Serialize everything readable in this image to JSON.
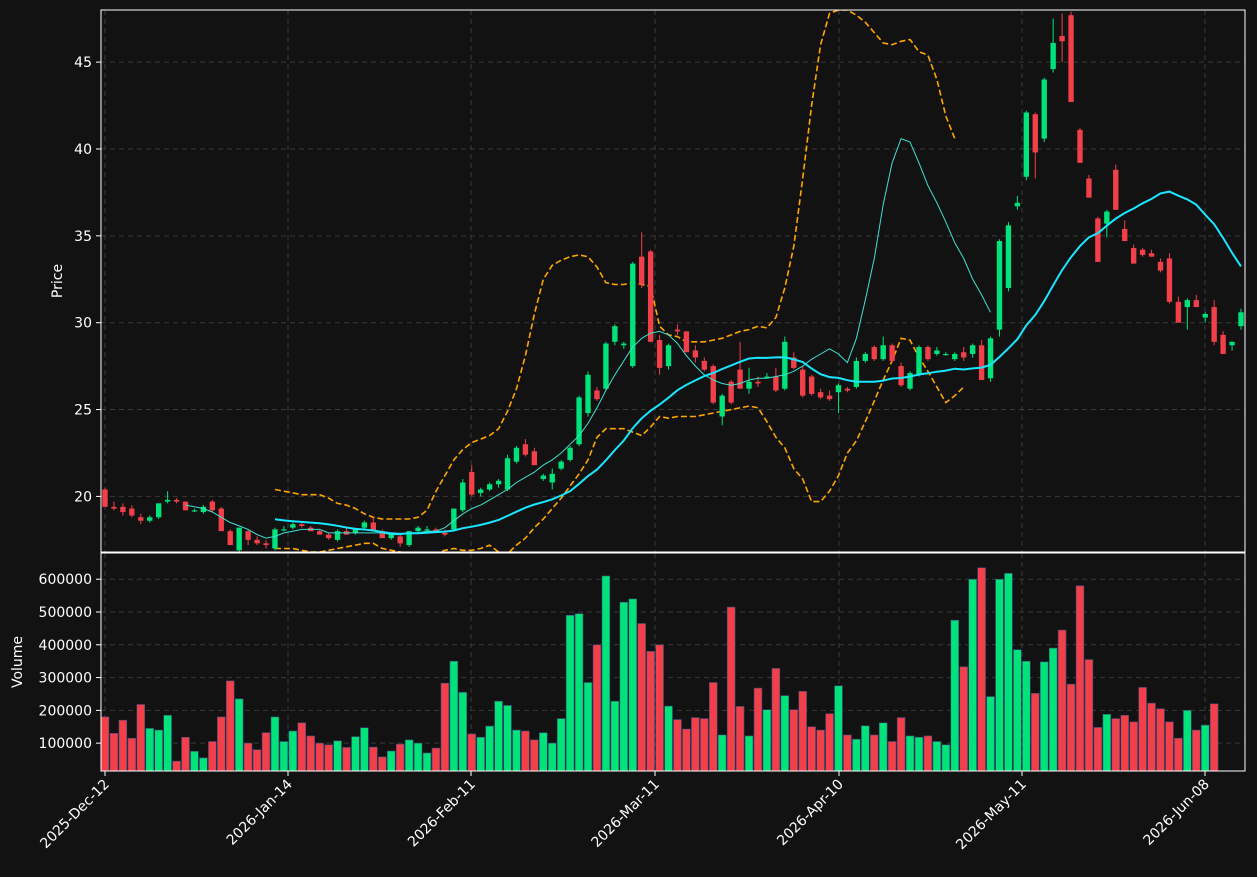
{
  "chart_data": [
    {
      "type": "candlestick",
      "panel": "price",
      "ylabel": "Price",
      "ylim": [
        16.8,
        48.0
      ],
      "yticks": [
        20,
        25,
        30,
        35,
        40,
        45
      ],
      "grid": true,
      "overlays": [
        {
          "kind": "moving_average",
          "style": "thin cyan line"
        },
        {
          "kind": "moving_average",
          "style": "thick cyan line"
        },
        {
          "kind": "bollinger_bands",
          "style": "orange dashed lines"
        }
      ],
      "colors": {
        "up": "#00e37a",
        "down": "#f2404a",
        "ma_thin": "#40e0d0",
        "ma_thick": "#19e6ff",
        "bands": "#ffa500",
        "background": "#121212",
        "grid": "#3a3a3a"
      },
      "ohlc": [
        [
          20.4,
          20.5,
          19.4,
          19.4
        ],
        [
          19.4,
          19.7,
          19.2,
          19.3
        ],
        [
          19.4,
          19.6,
          18.9,
          19.1
        ],
        [
          19.3,
          19.5,
          18.8,
          18.9
        ],
        [
          18.8,
          19.0,
          18.4,
          18.6
        ],
        [
          18.6,
          18.9,
          18.5,
          18.8
        ],
        [
          18.8,
          19.6,
          18.7,
          19.6
        ],
        [
          19.7,
          20.3,
          19.6,
          19.8
        ],
        [
          19.8,
          19.9,
          19.6,
          19.7
        ],
        [
          19.7,
          19.7,
          19.2,
          19.2
        ],
        [
          19.2,
          19.3,
          19.1,
          19.2
        ],
        [
          19.1,
          19.5,
          19.0,
          19.4
        ],
        [
          19.7,
          19.8,
          19.1,
          19.2
        ],
        [
          19.3,
          19.4,
          18.0,
          18.0
        ],
        [
          18.0,
          18.1,
          17.2,
          17.2
        ],
        [
          16.9,
          18.2,
          16.8,
          18.2
        ],
        [
          18.0,
          18.1,
          17.2,
          17.5
        ],
        [
          17.5,
          17.7,
          17.2,
          17.3
        ],
        [
          17.3,
          17.5,
          17.0,
          17.2
        ],
        [
          17.0,
          18.2,
          16.9,
          18.1
        ],
        [
          18.1,
          18.3,
          18.0,
          18.1
        ],
        [
          18.2,
          18.5,
          18.1,
          18.4
        ],
        [
          18.4,
          18.5,
          18.2,
          18.3
        ],
        [
          18.2,
          18.3,
          18.0,
          18.0
        ],
        [
          18.0,
          18.1,
          17.8,
          17.8
        ],
        [
          17.8,
          17.9,
          17.5,
          17.6
        ],
        [
          17.5,
          18.1,
          17.4,
          18.0
        ],
        [
          18.0,
          18.2,
          17.8,
          17.8
        ],
        [
          17.9,
          18.2,
          17.8,
          18.1
        ],
        [
          18.2,
          18.6,
          18.1,
          18.5
        ],
        [
          18.5,
          18.8,
          18.0,
          18.0
        ],
        [
          18.0,
          18.1,
          17.6,
          17.6
        ],
        [
          17.6,
          17.9,
          17.5,
          17.8
        ],
        [
          17.7,
          17.9,
          17.1,
          17.3
        ],
        [
          17.2,
          18.0,
          17.1,
          18.0
        ],
        [
          18.0,
          18.3,
          17.9,
          18.2
        ],
        [
          18.1,
          18.3,
          18.0,
          18.1
        ],
        [
          18.1,
          18.2,
          17.9,
          18.0
        ],
        [
          17.9,
          18.1,
          17.7,
          17.8
        ],
        [
          18.1,
          19.3,
          18.0,
          19.3
        ],
        [
          19.2,
          21.0,
          19.1,
          20.8
        ],
        [
          21.4,
          21.8,
          20.0,
          20.1
        ],
        [
          20.2,
          20.5,
          20.0,
          20.4
        ],
        [
          20.4,
          20.8,
          20.3,
          20.7
        ],
        [
          20.7,
          21.0,
          20.5,
          20.9
        ],
        [
          20.4,
          22.4,
          20.3,
          22.2
        ],
        [
          22.0,
          22.9,
          21.9,
          22.8
        ],
        [
          23.0,
          23.3,
          22.3,
          22.4
        ],
        [
          22.6,
          22.8,
          21.8,
          21.8
        ],
        [
          21.0,
          21.3,
          20.9,
          21.2
        ],
        [
          20.8,
          21.6,
          20.4,
          21.3
        ],
        [
          21.6,
          22.1,
          21.5,
          22.0
        ],
        [
          22.1,
          22.9,
          22.0,
          22.8
        ],
        [
          23.0,
          25.8,
          22.9,
          25.7
        ],
        [
          24.8,
          27.2,
          24.6,
          27.0
        ],
        [
          26.1,
          26.3,
          25.5,
          25.6
        ],
        [
          26.2,
          28.9,
          26.1,
          28.8
        ],
        [
          28.9,
          29.9,
          28.7,
          29.8
        ],
        [
          28.7,
          28.9,
          28.5,
          28.8
        ],
        [
          27.5,
          33.5,
          27.4,
          33.4
        ],
        [
          33.8,
          35.2,
          32.0,
          32.2
        ],
        [
          34.1,
          34.2,
          28.9,
          28.9
        ],
        [
          29.0,
          29.3,
          27.0,
          27.4
        ],
        [
          27.5,
          28.8,
          27.3,
          28.7
        ],
        [
          29.6,
          29.9,
          29.3,
          29.5
        ],
        [
          29.5,
          29.5,
          28.4,
          28.3
        ],
        [
          28.4,
          28.7,
          27.7,
          28.0
        ],
        [
          27.8,
          28.0,
          27.2,
          27.3
        ],
        [
          27.5,
          27.6,
          25.3,
          25.4
        ],
        [
          24.6,
          25.9,
          24.1,
          25.8
        ],
        [
          26.6,
          26.7,
          25.3,
          25.4
        ],
        [
          27.3,
          28.9,
          26.2,
          26.2
        ],
        [
          26.2,
          27.4,
          25.9,
          26.6
        ],
        [
          26.6,
          26.9,
          26.3,
          26.5
        ],
        [
          26.9,
          27.1,
          26.8,
          26.9
        ],
        [
          26.9,
          27.4,
          26.0,
          26.1
        ],
        [
          26.2,
          29.2,
          26.1,
          28.9
        ],
        [
          28.0,
          28.3,
          27.3,
          27.4
        ],
        [
          27.3,
          27.5,
          25.7,
          25.8
        ],
        [
          26.9,
          27.0,
          25.8,
          25.9
        ],
        [
          26.0,
          26.2,
          25.6,
          25.7
        ],
        [
          25.8,
          26.1,
          25.5,
          25.6
        ],
        [
          26.0,
          26.5,
          24.8,
          26.4
        ],
        [
          26.2,
          26.3,
          26.0,
          26.1
        ],
        [
          26.3,
          28.0,
          26.2,
          27.8
        ],
        [
          27.8,
          28.3,
          27.7,
          28.2
        ],
        [
          28.6,
          28.7,
          27.8,
          27.9
        ],
        [
          27.9,
          29.2,
          27.8,
          28.7
        ],
        [
          28.7,
          28.8,
          27.7,
          27.8
        ],
        [
          27.5,
          27.7,
          26.3,
          26.4
        ],
        [
          26.2,
          27.2,
          26.1,
          27.1
        ],
        [
          27.0,
          28.7,
          26.9,
          28.6
        ],
        [
          28.6,
          28.7,
          27.8,
          27.9
        ],
        [
          28.2,
          28.6,
          28.1,
          28.4
        ],
        [
          28.2,
          28.3,
          28.1,
          28.2
        ],
        [
          27.9,
          28.3,
          27.8,
          28.2
        ],
        [
          28.3,
          28.6,
          27.8,
          28.0
        ],
        [
          28.2,
          28.8,
          28.0,
          28.7
        ],
        [
          28.7,
          29.0,
          26.8,
          26.7
        ],
        [
          26.8,
          29.2,
          26.6,
          29.1
        ],
        [
          29.6,
          34.8,
          29.2,
          34.7
        ],
        [
          32.0,
          35.8,
          31.8,
          35.6
        ],
        [
          36.7,
          37.3,
          36.5,
          36.9
        ],
        [
          38.4,
          42.2,
          38.2,
          42.1
        ],
        [
          42.0,
          42.1,
          38.3,
          39.8
        ],
        [
          40.6,
          44.1,
          40.4,
          44.0
        ],
        [
          44.6,
          47.5,
          44.4,
          46.1
        ],
        [
          46.5,
          47.8,
          45.0,
          46.2
        ],
        [
          47.7,
          47.9,
          42.8,
          42.7
        ],
        [
          41.1,
          41.2,
          39.2,
          39.2
        ],
        [
          38.3,
          38.5,
          37.2,
          37.2
        ],
        [
          36.0,
          36.1,
          33.6,
          33.5
        ],
        [
          35.7,
          36.5,
          34.9,
          36.4
        ],
        [
          38.8,
          39.1,
          36.6,
          36.5
        ],
        [
          35.4,
          35.9,
          34.7,
          34.7
        ],
        [
          34.3,
          34.5,
          33.5,
          33.4
        ],
        [
          34.2,
          34.3,
          33.8,
          33.9
        ],
        [
          34.0,
          34.2,
          33.8,
          33.8
        ],
        [
          33.5,
          33.7,
          32.9,
          33.0
        ],
        [
          33.7,
          34.0,
          31.1,
          31.2
        ],
        [
          31.2,
          31.5,
          30.1,
          30.0
        ],
        [
          30.9,
          31.4,
          29.6,
          31.3
        ],
        [
          31.3,
          31.6,
          30.9,
          30.9
        ],
        [
          30.3,
          30.6,
          30.0,
          30.5
        ],
        [
          30.9,
          31.3,
          28.7,
          28.9
        ],
        [
          29.3,
          29.5,
          28.2,
          28.2
        ],
        [
          28.7,
          28.9,
          28.4,
          28.9
        ],
        [
          29.8,
          30.8,
          29.6,
          30.6
        ]
      ],
      "bollinger_upper": [
        null,
        null,
        null,
        null,
        null,
        null,
        null,
        null,
        null,
        null,
        null,
        null,
        null,
        null,
        null,
        null,
        null,
        null,
        null,
        20.4,
        20.3,
        20.2,
        20.1,
        20.1,
        20.1,
        19.9,
        19.6,
        19.5,
        19.3,
        19.0,
        18.8,
        18.7,
        18.7,
        18.7,
        18.7,
        18.8,
        19.2,
        20.3,
        21.2,
        22.1,
        22.7,
        23.1,
        23.3,
        23.5,
        23.9,
        24.9,
        26.2,
        28.1,
        30.5,
        32.5,
        33.3,
        33.6,
        33.8,
        33.9,
        33.8,
        33.2,
        32.3,
        32.2,
        32.2,
        32.3,
        32.2,
        32.1,
        29.8,
        29.3,
        29.2,
        28.9,
        28.9,
        28.9,
        29.0,
        29.1,
        29.3,
        29.5,
        29.6,
        29.8,
        29.7,
        30.3,
        32.0,
        34.4,
        38.3,
        42.5,
        46.0,
        47.8,
        48.0,
        48.0,
        47.7,
        47.3,
        46.7,
        46.1,
        46.0,
        46.2,
        46.3,
        45.6,
        45.4,
        44.0,
        41.9,
        40.6
      ],
      "bollinger_lower": [
        null,
        null,
        null,
        null,
        null,
        null,
        null,
        null,
        null,
        null,
        null,
        null,
        null,
        null,
        null,
        null,
        null,
        null,
        null,
        17.0,
        17.0,
        17.0,
        16.9,
        16.8,
        16.8,
        16.9,
        17.0,
        17.1,
        17.2,
        17.3,
        17.3,
        17.0,
        16.9,
        16.8,
        16.7,
        16.6,
        16.6,
        16.7,
        16.9,
        17.0,
        16.9,
        16.9,
        17.0,
        17.2,
        16.8,
        16.7,
        17.2,
        17.6,
        18.2,
        18.7,
        19.3,
        19.9,
        20.6,
        21.3,
        22.1,
        23.4,
        23.9,
        23.9,
        23.9,
        23.7,
        23.5,
        24.0,
        24.6,
        24.5,
        24.6,
        24.6,
        24.6,
        24.7,
        24.8,
        24.9,
        25.0,
        25.1,
        25.2,
        25.1,
        24.3,
        23.4,
        22.8,
        21.6,
        21.0,
        19.7,
        19.7,
        20.3,
        21.2,
        22.5,
        23.2,
        24.3,
        25.5,
        26.7,
        27.8,
        29.1,
        29.0,
        28.0,
        27.2,
        26.3,
        25.4,
        25.8,
        26.3
      ],
      "ma_thin": [
        null,
        null,
        null,
        null,
        null,
        null,
        null,
        null,
        null,
        19.5,
        19.4,
        19.3,
        19.1,
        18.8,
        18.5,
        18.3,
        18.1,
        17.8,
        17.6,
        17.7,
        17.9,
        18.0,
        18.1,
        18.1,
        18.1,
        17.9,
        17.9,
        17.9,
        17.9,
        17.9,
        17.9,
        17.9,
        17.8,
        17.8,
        17.9,
        17.9,
        18.0,
        18.0,
        18.2,
        18.6,
        19.0,
        19.3,
        19.5,
        19.8,
        20.1,
        20.4,
        20.8,
        21.1,
        21.4,
        21.8,
        22.1,
        22.5,
        23.0,
        23.5,
        24.2,
        25.1,
        26.1,
        27.0,
        27.8,
        28.6,
        29.1,
        29.4,
        29.5,
        29.3,
        28.8,
        28.1,
        27.5,
        27.0,
        26.7,
        26.5,
        26.4,
        26.5,
        26.7,
        26.8,
        26.8,
        26.9,
        27.0,
        27.2,
        27.5,
        27.9,
        28.2,
        28.5,
        28.2,
        27.7,
        29.1,
        31.3,
        33.7,
        36.8,
        39.2,
        40.6,
        40.4,
        39.2,
        37.9,
        36.9,
        35.8,
        34.6,
        33.7,
        32.5,
        31.6,
        30.6
      ]
    },
    {
      "type": "bar",
      "panel": "volume",
      "ylabel": "Volume",
      "ylim": [
        15000,
        680000
      ],
      "yticks": [
        100000,
        200000,
        300000,
        400000,
        500000,
        600000
      ],
      "ytick_labels": [
        "100000",
        "200000",
        "300000",
        "400000",
        "500000",
        "600000"
      ],
      "xticks": [
        "2025-Dec-12",
        "2026-Jan-14",
        "2026-Feb-11",
        "2026-Mar-11",
        "2026-Apr-10",
        "2026-May-11",
        "2026-Jun-08"
      ],
      "values": [
        180000,
        130000,
        170000,
        115000,
        218000,
        145000,
        140000,
        185000,
        45000,
        118000,
        75000,
        55000,
        105000,
        180000,
        290000,
        235000,
        100000,
        80000,
        132000,
        180000,
        105000,
        137000,
        162000,
        122000,
        100000,
        95000,
        107000,
        87000,
        120000,
        147000,
        88000,
        58000,
        76000,
        97000,
        110000,
        100000,
        70000,
        85000,
        283000,
        350000,
        255000,
        128000,
        118000,
        152000,
        228000,
        215000,
        140000,
        137000,
        110000,
        132000,
        100000,
        175000,
        490000,
        495000,
        285000,
        400000,
        610000,
        228000,
        530000,
        540000,
        465000,
        380000,
        400000,
        213000,
        172000,
        143000,
        178000,
        175000,
        285000,
        125000,
        515000,
        212000,
        122000,
        268000,
        202000,
        328000,
        245000,
        202000,
        258000,
        150000,
        140000,
        190000,
        275000,
        125000,
        112000,
        153000,
        125000,
        162000,
        105000,
        178000,
        122000,
        118000,
        122000,
        105000,
        95000,
        475000,
        333000,
        600000,
        635000,
        242000,
        600000,
        618000,
        385000,
        350000,
        252000,
        348000,
        390000,
        445000,
        280000,
        580000,
        355000,
        148000,
        188000,
        175000,
        185000,
        165000,
        270000,
        222000,
        205000,
        165000,
        115000,
        200000,
        140000,
        155000,
        220000
      ],
      "value_colors_follow_candles": true
    }
  ]
}
